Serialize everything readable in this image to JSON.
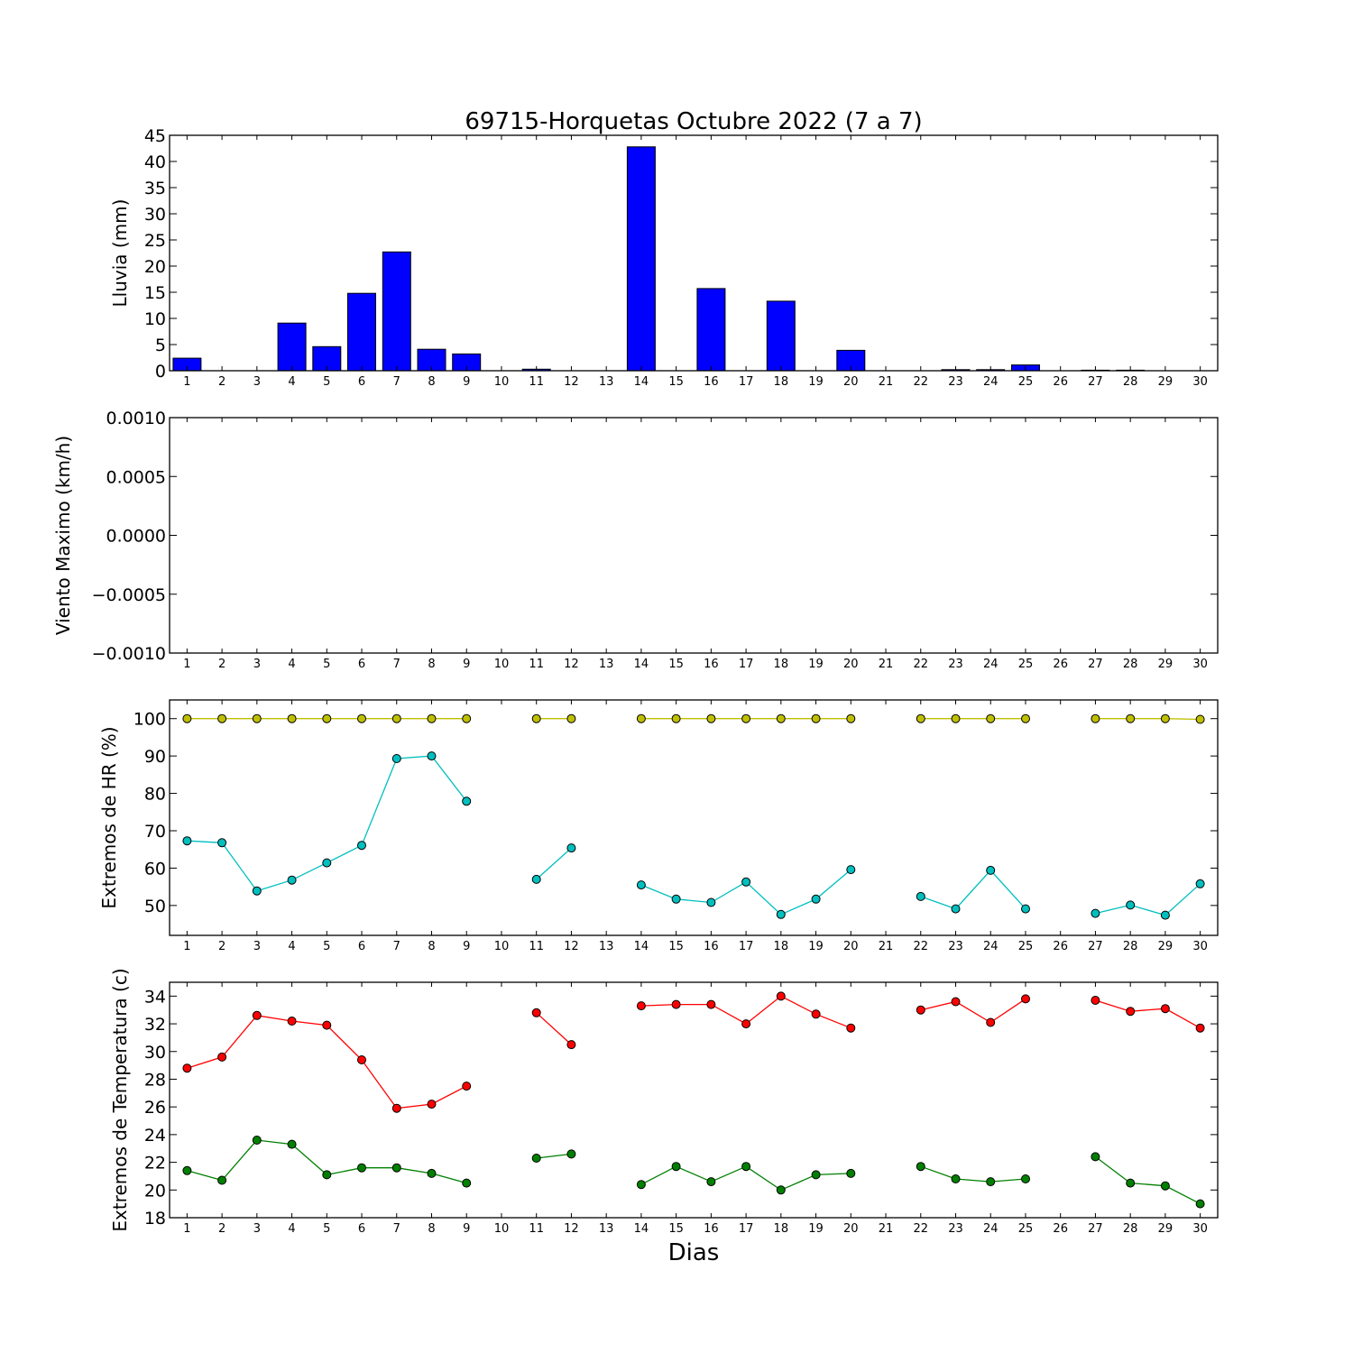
{
  "chart_data": [
    {
      "type": "bar",
      "title": "69715-Horquetas Octubre 2022  (7 a 7)",
      "ylabel": "Lluvia (mm)",
      "xlabel": "",
      "ylim": [
        0,
        45
      ],
      "yticks": [
        0,
        5,
        10,
        15,
        20,
        25,
        30,
        35,
        40,
        45
      ],
      "categories": [
        1,
        2,
        3,
        4,
        5,
        6,
        7,
        8,
        9,
        10,
        11,
        12,
        13,
        14,
        15,
        16,
        17,
        18,
        19,
        20,
        21,
        22,
        23,
        24,
        25,
        26,
        27,
        28,
        29,
        30
      ],
      "color": "#0000ff",
      "values": [
        2.4,
        0,
        0,
        9.1,
        4.6,
        14.8,
        22.7,
        4.1,
        3.2,
        0,
        0.3,
        0,
        0,
        42.8,
        0,
        15.7,
        0,
        13.3,
        0,
        3.9,
        0,
        0,
        0.2,
        0.2,
        1.1,
        0,
        0.1,
        0.1,
        0,
        0
      ]
    },
    {
      "type": "line",
      "ylabel": "Viento Maximo (km/h)",
      "xlabel": "",
      "ylim": [
        -0.001,
        0.001
      ],
      "yticks": [
        "−0.0010",
        "−0.0005",
        "0.0000",
        "0.0005",
        "0.0010"
      ],
      "x": [
        1,
        2,
        3,
        4,
        5,
        6,
        7,
        8,
        9,
        10,
        11,
        12,
        13,
        14,
        15,
        16,
        17,
        18,
        19,
        20,
        21,
        22,
        23,
        24,
        25,
        26,
        27,
        28,
        29,
        30
      ],
      "series": []
    },
    {
      "type": "line",
      "ylabel": "Extremos de HR (%)",
      "xlabel": "",
      "ylim": [
        42,
        105
      ],
      "yticks": [
        50,
        60,
        70,
        80,
        90,
        100
      ],
      "x": [
        1,
        2,
        3,
        4,
        5,
        6,
        7,
        8,
        9,
        10,
        11,
        12,
        13,
        14,
        15,
        16,
        17,
        18,
        19,
        20,
        21,
        22,
        23,
        24,
        25,
        26,
        27,
        28,
        29,
        30
      ],
      "series": [
        {
          "color": "#bfbf00",
          "values": [
            100,
            100,
            100,
            100,
            100,
            100,
            100,
            100,
            100,
            null,
            100,
            100,
            null,
            100,
            100,
            100,
            100,
            100,
            100,
            100,
            null,
            100,
            100,
            100,
            100,
            null,
            100,
            100,
            100,
            99.8
          ]
        },
        {
          "color": "#00bfbf",
          "values": [
            67.3,
            66.8,
            53.9,
            56.8,
            61.4,
            66.1,
            89.3,
            90,
            77.9,
            null,
            57,
            65.4,
            null,
            55.5,
            51.7,
            50.8,
            56.3,
            47.6,
            51.7,
            59.6,
            null,
            52.4,
            49.1,
            59.4,
            49.1,
            null,
            47.9,
            50.1,
            47.4,
            55.8
          ]
        }
      ]
    },
    {
      "type": "line",
      "ylabel": "Extremos de Temperatura (c)",
      "xlabel": "Dias",
      "ylim": [
        18,
        35
      ],
      "yticks": [
        18,
        20,
        22,
        24,
        26,
        28,
        30,
        32,
        34
      ],
      "x": [
        1,
        2,
        3,
        4,
        5,
        6,
        7,
        8,
        9,
        10,
        11,
        12,
        13,
        14,
        15,
        16,
        17,
        18,
        19,
        20,
        21,
        22,
        23,
        24,
        25,
        26,
        27,
        28,
        29,
        30
      ],
      "series": [
        {
          "color": "#ff0000",
          "values": [
            28.8,
            29.6,
            32.6,
            32.2,
            31.9,
            29.4,
            25.9,
            26.2,
            27.5,
            null,
            32.8,
            30.5,
            null,
            33.3,
            33.4,
            33.4,
            32,
            34,
            32.7,
            31.7,
            null,
            33,
            33.6,
            32.1,
            33.8,
            null,
            33.7,
            32.9,
            33.1,
            31.7
          ]
        },
        {
          "color": "#008000",
          "values": [
            21.4,
            20.7,
            23.6,
            23.3,
            21.1,
            21.6,
            21.6,
            21.2,
            20.5,
            null,
            22.3,
            22.6,
            null,
            20.4,
            21.7,
            20.6,
            21.7,
            20,
            21.1,
            21.2,
            null,
            21.7,
            20.8,
            20.6,
            20.8,
            null,
            22.4,
            20.5,
            20.3,
            19
          ]
        }
      ]
    }
  ]
}
